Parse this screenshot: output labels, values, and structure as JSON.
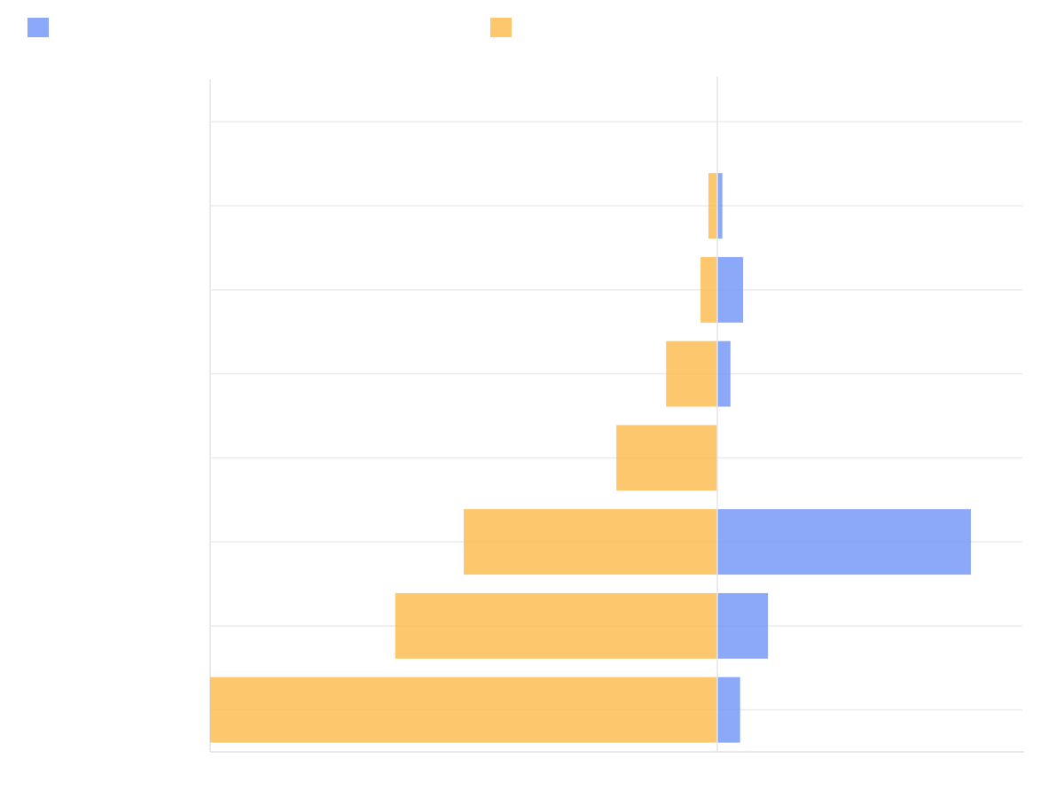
{
  "chart_data": {
    "type": "bar",
    "orientation": "horizontal",
    "categories": [
      null,
      null,
      null,
      null,
      null,
      null,
      null,
      null
    ],
    "series": [
      {
        "color": "#6f93f7",
        "values": [
          0,
          1,
          5.1,
          2.6,
          0,
          50,
          10,
          4.5
        ]
      },
      {
        "color": "#fdb94a",
        "values": [
          0,
          -1.75,
          -3.3,
          -10.1,
          -19.9,
          -50,
          -63.5,
          -100
        ]
      }
    ],
    "xlim": [
      -100,
      60.5
    ],
    "xticks": [
      0
    ],
    "grid": true,
    "legend": "top"
  }
}
